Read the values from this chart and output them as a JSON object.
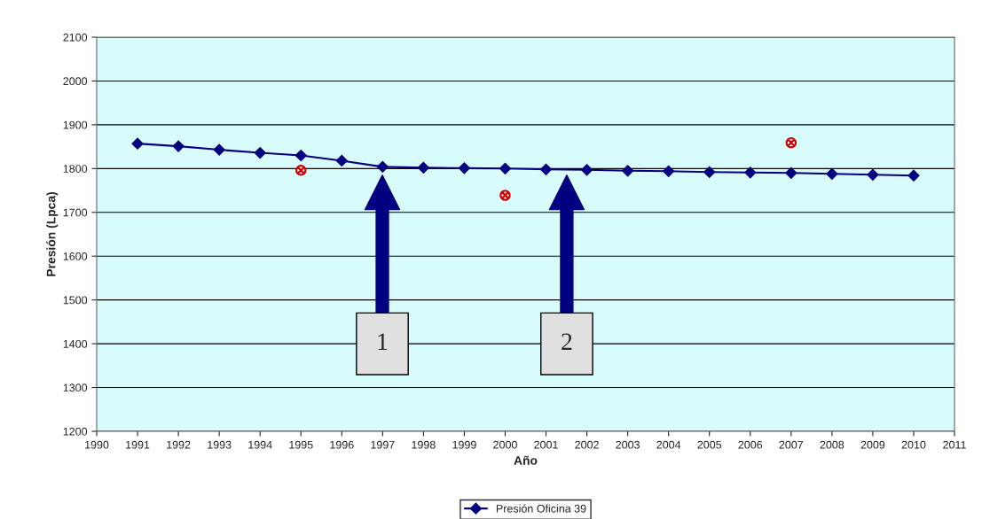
{
  "chart_data": {
    "type": "line",
    "xlabel": "Año",
    "ylabel": "Presión (Lpca)",
    "x": [
      1991,
      1992,
      1993,
      1994,
      1995,
      1996,
      1997,
      1998,
      1999,
      2000,
      2001,
      2002,
      2003,
      2004,
      2005,
      2006,
      2007,
      2008,
      2009,
      2010
    ],
    "series": [
      {
        "name": "Presión Oficina 39",
        "color": "#000080",
        "marker": "diamond",
        "line_style": "solid",
        "values": [
          1857,
          1851,
          1843,
          1836,
          1830,
          1818,
          1804,
          1802,
          1801,
          1800,
          1798,
          1797,
          1795,
          1794,
          1792,
          1791,
          1790,
          1788,
          1786,
          1784
        ]
      },
      {
        "type": "scatter",
        "color": "#cc0000",
        "marker": "cross",
        "x": [
          1995,
          2000,
          2007
        ],
        "values": [
          1796,
          1739,
          1859
        ]
      }
    ],
    "xlim": [
      1990,
      2011
    ],
    "xticks": [
      1990,
      1991,
      1992,
      1993,
      1994,
      1995,
      1996,
      1997,
      1998,
      1999,
      2000,
      2001,
      2002,
      2003,
      2004,
      2005,
      2006,
      2007,
      2008,
      2009,
      2010,
      2011
    ],
    "ylim": [
      1200,
      2100
    ],
    "yticks": [
      1200,
      1300,
      1400,
      1500,
      1600,
      1700,
      1800,
      1900,
      2000,
      2100
    ],
    "grid": "y",
    "legend": "bottom",
    "annotations": [
      "1",
      "2"
    ]
  }
}
